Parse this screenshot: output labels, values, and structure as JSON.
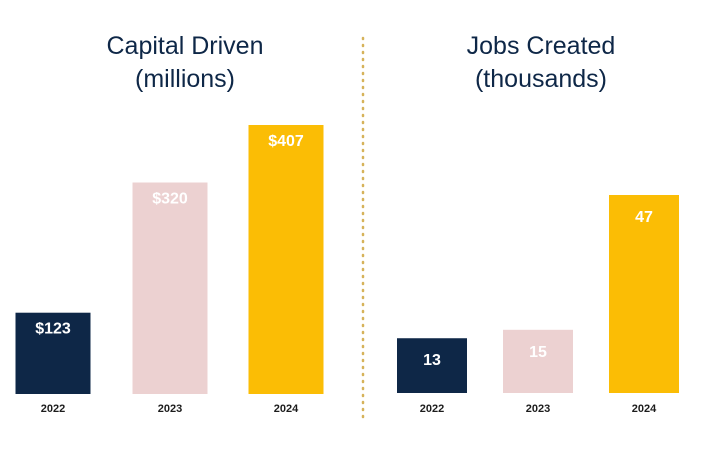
{
  "chart_data": [
    {
      "type": "bar",
      "title": "Capital Driven",
      "subtitle": "(millions)",
      "categories": [
        "2022",
        "2023",
        "2024"
      ],
      "values": [
        123,
        320,
        407
      ],
      "data_labels": [
        "$123",
        "$320",
        "$407"
      ],
      "colors": [
        "#0e2747",
        "#ecd1d1",
        "#fbbd05"
      ],
      "label_colors": [
        "#ffffff",
        "#ffffff",
        "#ffffff"
      ],
      "ylim": [
        0,
        407
      ],
      "grid": false
    },
    {
      "type": "bar",
      "title": "Jobs Created",
      "subtitle": "(thousands)",
      "categories": [
        "2022",
        "2023",
        "2024"
      ],
      "values": [
        13,
        15,
        47
      ],
      "data_labels": [
        "13",
        "15",
        "47"
      ],
      "colors": [
        "#0e2747",
        "#ecd1d1",
        "#fbbd05"
      ],
      "label_colors": [
        "#ffffff",
        "#ffffff",
        "#ffffff"
      ],
      "ylim": [
        0,
        47
      ],
      "grid": false
    }
  ],
  "divider_color": "#d6b35a"
}
